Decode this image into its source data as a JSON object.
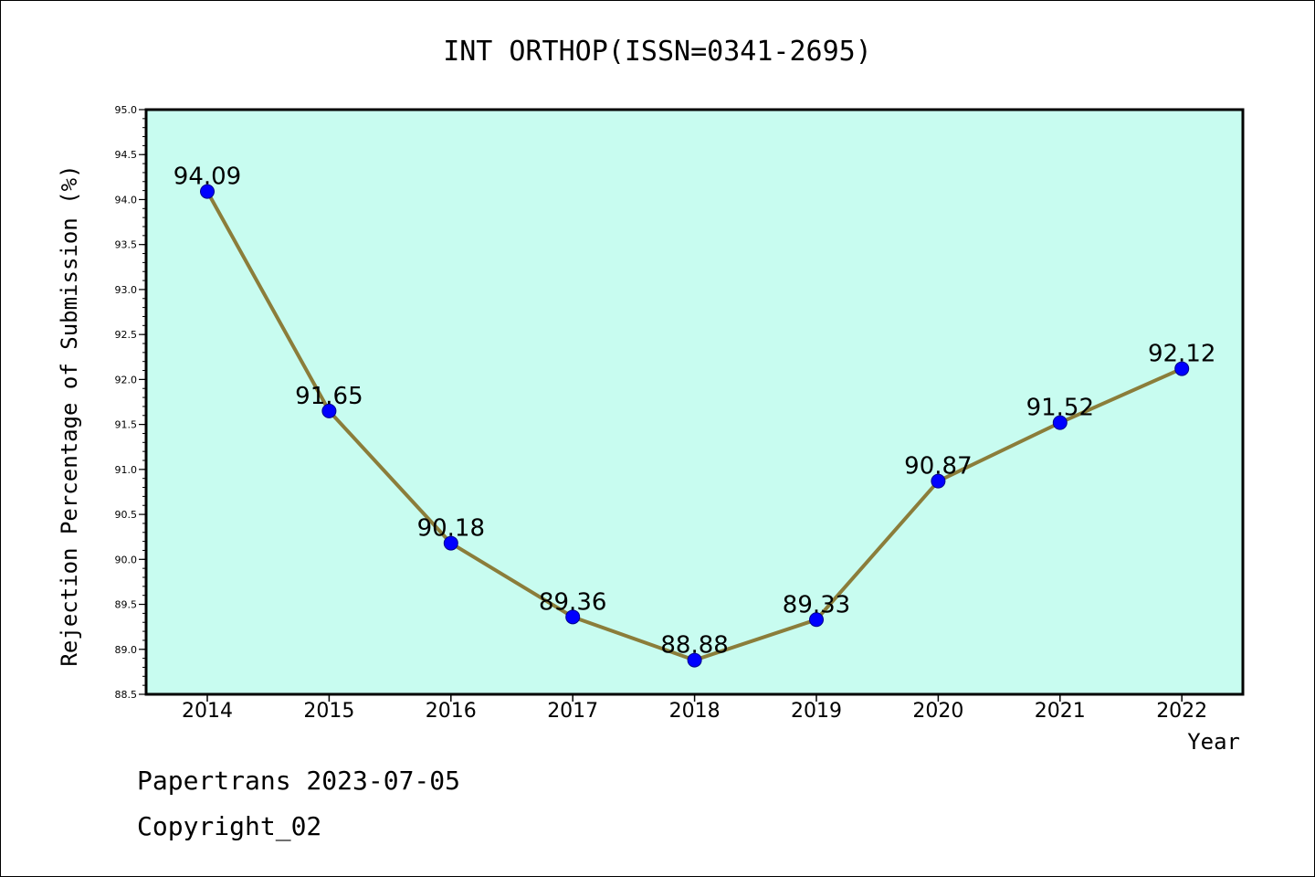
{
  "chart_data": {
    "type": "line",
    "title": "INT ORTHOP(ISSN=0341-2695)",
    "xlabel": "Year",
    "ylabel": "Rejection Percentage of Submission (%)",
    "categories": [
      "2014",
      "2015",
      "2016",
      "2017",
      "2018",
      "2019",
      "2020",
      "2021",
      "2022"
    ],
    "values": [
      94.09,
      91.65,
      90.18,
      89.36,
      88.88,
      89.33,
      90.87,
      91.52,
      92.12
    ],
    "data_labels": [
      "94.09",
      "91.65",
      "90.18",
      "89.36",
      "88.88",
      "89.33",
      "90.87",
      "91.52",
      "92.12"
    ],
    "ylim": [
      88.5,
      95.0
    ],
    "yticks": [
      "88.5",
      "89.0",
      "89.5",
      "90.0",
      "90.5",
      "91.0",
      "91.5",
      "92.0",
      "92.5",
      "93.0",
      "93.5",
      "94.0",
      "94.5",
      "95.0"
    ],
    "grid": false,
    "colors": {
      "plot_background": "#c8fcf0",
      "line": "#8b7d3a",
      "marker": "#0000ff"
    }
  },
  "footer": {
    "line1": "Papertrans 2023-07-05",
    "line2": "Copyright_02"
  }
}
